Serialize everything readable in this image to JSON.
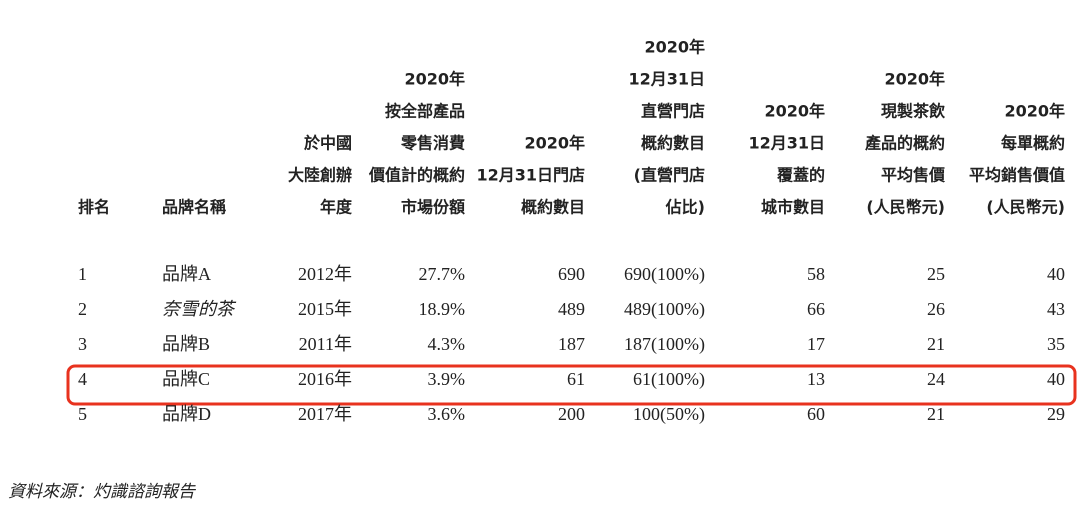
{
  "table": {
    "headers": [
      [
        "排名"
      ],
      [
        "品牌名稱"
      ],
      [
        "於中國",
        "大陸創辦",
        "年度"
      ],
      [
        "2020年",
        "按全部產品",
        "零售消費",
        "價值計的概約",
        "市場份額"
      ],
      [
        "2020年",
        "12月31日門店",
        "概約數目"
      ],
      [
        "2020年",
        "12月31日",
        "直營門店",
        "概約數目",
        "(直營門店",
        "佔比)"
      ],
      [
        "2020年",
        "12月31日",
        "覆蓋的",
        "城市數目"
      ],
      [
        "2020年",
        "現製茶飲",
        "產品的概約",
        "平均售價",
        "(人民幣元)"
      ],
      [
        "2020年",
        "每單概約",
        "平均銷售價值",
        "(人民幣元)"
      ]
    ],
    "rows": [
      [
        "1",
        "品牌A",
        "2012年",
        "27.7%",
        "690",
        "690(100%)",
        "58",
        "25",
        "40"
      ],
      [
        "2",
        "奈雪的茶",
        "2015年",
        "18.9%",
        "489",
        "489(100%)",
        "66",
        "26",
        "43"
      ],
      [
        "3",
        "品牌B",
        "2011年",
        "4.3%",
        "187",
        "187(100%)",
        "17",
        "21",
        "35"
      ],
      [
        "4",
        "品牌C",
        "2016年",
        "3.9%",
        "61",
        "61(100%)",
        "13",
        "24",
        "40"
      ],
      [
        "5",
        "品牌D",
        "2017年",
        "3.6%",
        "200",
        "100(50%)",
        "60",
        "21",
        "29"
      ]
    ]
  },
  "source": "資料來源：灼識諮詢報告"
}
